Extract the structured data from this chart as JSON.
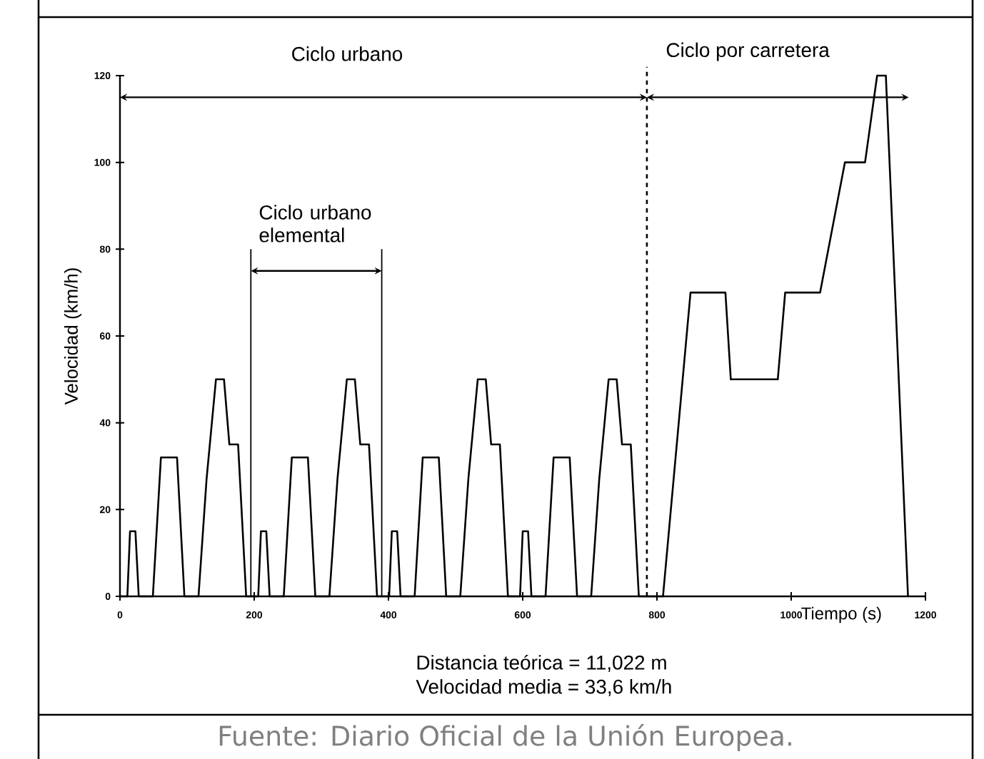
{
  "chart_data": {
    "type": "line",
    "xlabel": "Tiempo (s)",
    "ylabel": "Velocidad (km/h)",
    "x": [
      0,
      11,
      15,
      23,
      28,
      49,
      61,
      85,
      96,
      117,
      129,
      143,
      155,
      163,
      176,
      188,
      195,
      206,
      210,
      218,
      223,
      244,
      256,
      280,
      291,
      312,
      324,
      338,
      350,
      358,
      371,
      383,
      390,
      401,
      405,
      413,
      418,
      439,
      451,
      475,
      486,
      507,
      519,
      533,
      545,
      553,
      566,
      578,
      585,
      596,
      600,
      608,
      613,
      634,
      646,
      670,
      681,
      702,
      714,
      728,
      740,
      748,
      761,
      773,
      809,
      850,
      902,
      910,
      980,
      991,
      1043,
      1080,
      1110,
      1128,
      1141,
      1174
    ],
    "values": [
      0,
      0,
      15,
      15,
      0,
      0,
      32,
      32,
      0,
      0,
      27,
      50,
      50,
      35,
      35,
      0,
      0,
      0,
      15,
      15,
      0,
      0,
      32,
      32,
      0,
      0,
      27,
      50,
      50,
      35,
      35,
      0,
      0,
      0,
      15,
      15,
      0,
      0,
      32,
      32,
      0,
      0,
      27,
      50,
      50,
      35,
      35,
      0,
      0,
      0,
      15,
      15,
      0,
      0,
      32,
      32,
      0,
      0,
      27,
      50,
      50,
      35,
      35,
      0,
      0,
      70,
      70,
      50,
      50,
      70,
      70,
      100,
      100,
      120,
      120,
      0
    ],
    "color": "#000000",
    "marker": "none",
    "line_style": "solid",
    "grid": false,
    "xlim": [
      0,
      1200
    ],
    "ylim": [
      0,
      120
    ],
    "xticks": [
      0,
      200,
      400,
      600,
      800,
      1000,
      1200
    ],
    "yticks": [
      0,
      20,
      40,
      60,
      80,
      100,
      120
    ],
    "ref_lines": [
      {
        "axis": "x",
        "value": 785,
        "line_style": "dashed",
        "color": "#000000"
      },
      {
        "axis": "x",
        "value": 195,
        "line_style": "solid",
        "color": "#000000"
      },
      {
        "axis": "x",
        "value": 390,
        "line_style": "solid",
        "color": "#000000"
      }
    ],
    "annotations": [
      "Ciclo urbano",
      "Ciclo por carretera",
      "Ciclo urbano elemental",
      "Distancia teórica = 11,022 m",
      "Velocidad media = 33,6 km/h",
      "Fuente: Diario Oficial de la Unión Europea."
    ]
  }
}
